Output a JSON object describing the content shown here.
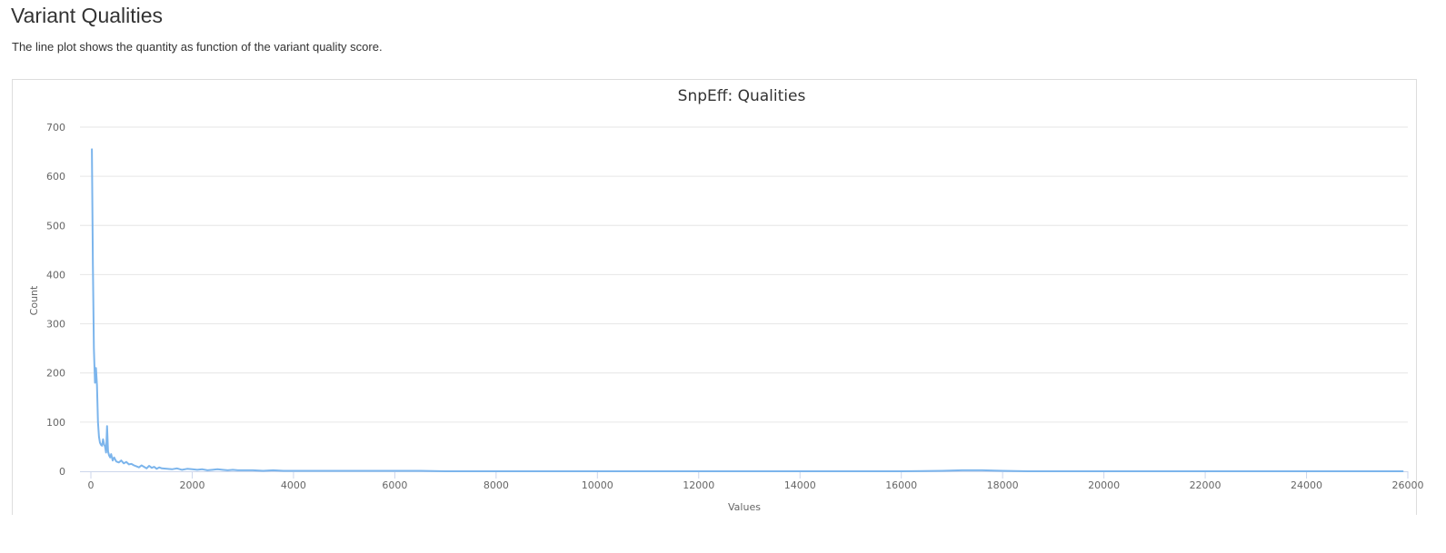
{
  "section": {
    "title": "Variant Qualities",
    "description": "The line plot shows the quantity as function of the variant quality score."
  },
  "colors": {
    "line": "#7cb5ec",
    "grid": "#e6e6e6",
    "axis": "#ccd6eb"
  },
  "chart_data": {
    "type": "line",
    "title": "SnpEff: Qualities",
    "xlabel": "Values",
    "ylabel": "Count",
    "xlim": [
      0,
      26000
    ],
    "ylim": [
      0,
      700
    ],
    "x_ticks": [
      0,
      2000,
      4000,
      6000,
      8000,
      10000,
      12000,
      14000,
      16000,
      18000,
      20000,
      22000,
      24000,
      26000
    ],
    "y_ticks": [
      0,
      100,
      200,
      300,
      400,
      500,
      600,
      700
    ],
    "grid": true,
    "legend": "none",
    "series": [
      {
        "x": [
          20,
          40,
          60,
          80,
          100,
          120,
          140,
          160,
          180,
          200,
          220,
          240,
          260,
          280,
          300,
          320,
          340,
          360,
          380,
          400,
          430,
          460,
          500,
          550,
          600,
          650,
          700,
          750,
          800,
          850,
          900,
          950,
          1000,
          1050,
          1100,
          1150,
          1200,
          1250,
          1300,
          1350,
          1400,
          1500,
          1600,
          1700,
          1800,
          1900,
          2000,
          2100,
          2200,
          2300,
          2400,
          2500,
          2600,
          2700,
          2800,
          2900,
          3000,
          3200,
          3400,
          3600,
          3800,
          4000,
          4500,
          5000,
          5500,
          6000,
          6500,
          7000,
          8000,
          9000,
          10000,
          11000,
          12000,
          13000,
          14000,
          15000,
          16000,
          16800,
          17200,
          17600,
          18000,
          18500,
          19000,
          20000,
          22000,
          24000,
          25900
        ],
        "y": [
          655,
          420,
          250,
          180,
          210,
          175,
          100,
          70,
          58,
          54,
          52,
          65,
          55,
          50,
          38,
          92,
          40,
          32,
          28,
          35,
          22,
          28,
          20,
          18,
          22,
          16,
          19,
          14,
          15,
          12,
          10,
          8,
          12,
          9,
          6,
          11,
          7,
          9,
          5,
          8,
          6,
          5,
          4,
          6,
          3,
          5,
          4,
          3,
          4,
          2,
          3,
          4,
          3,
          2,
          3,
          2,
          2,
          2,
          1,
          2,
          1,
          1,
          1,
          1,
          1,
          1,
          1,
          0,
          0,
          0,
          0,
          0,
          0,
          0,
          0,
          0,
          0,
          1,
          2,
          2,
          1,
          0,
          0,
          0,
          0,
          0,
          0
        ]
      }
    ]
  }
}
